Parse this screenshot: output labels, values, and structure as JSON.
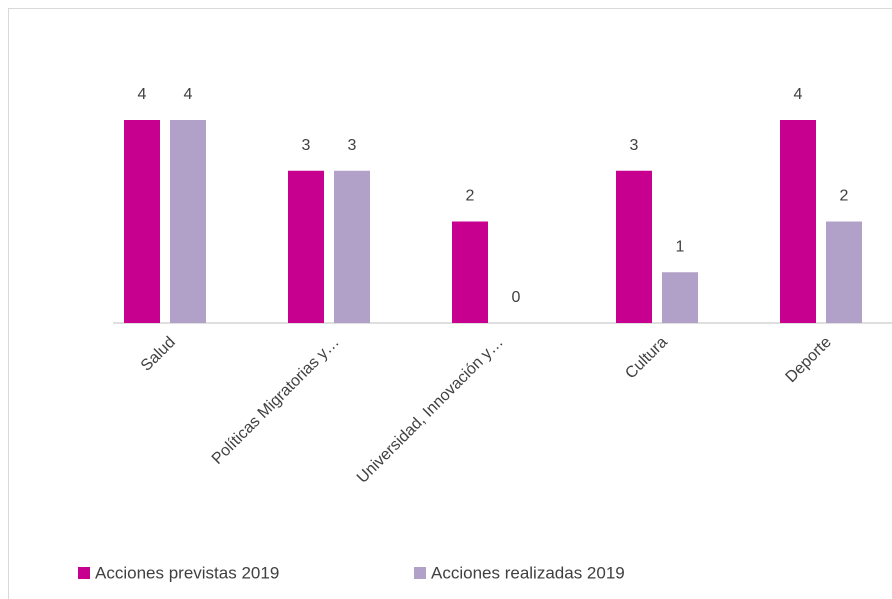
{
  "chart_data": {
    "type": "bar",
    "categories": [
      "Salud",
      "Políticas Migratorias y…",
      "Universidad, Innovación y…",
      "Cultura",
      "Deporte"
    ],
    "series": [
      {
        "name": "Acciones previstas 2019",
        "color": "#c8008f",
        "values": [
          4,
          3,
          2,
          3,
          4
        ]
      },
      {
        "name": "Acciones realizadas 2019",
        "color": "#b1a0c7",
        "values": [
          4,
          3,
          0,
          1,
          2
        ]
      }
    ],
    "ylim": [
      0,
      4
    ]
  }
}
